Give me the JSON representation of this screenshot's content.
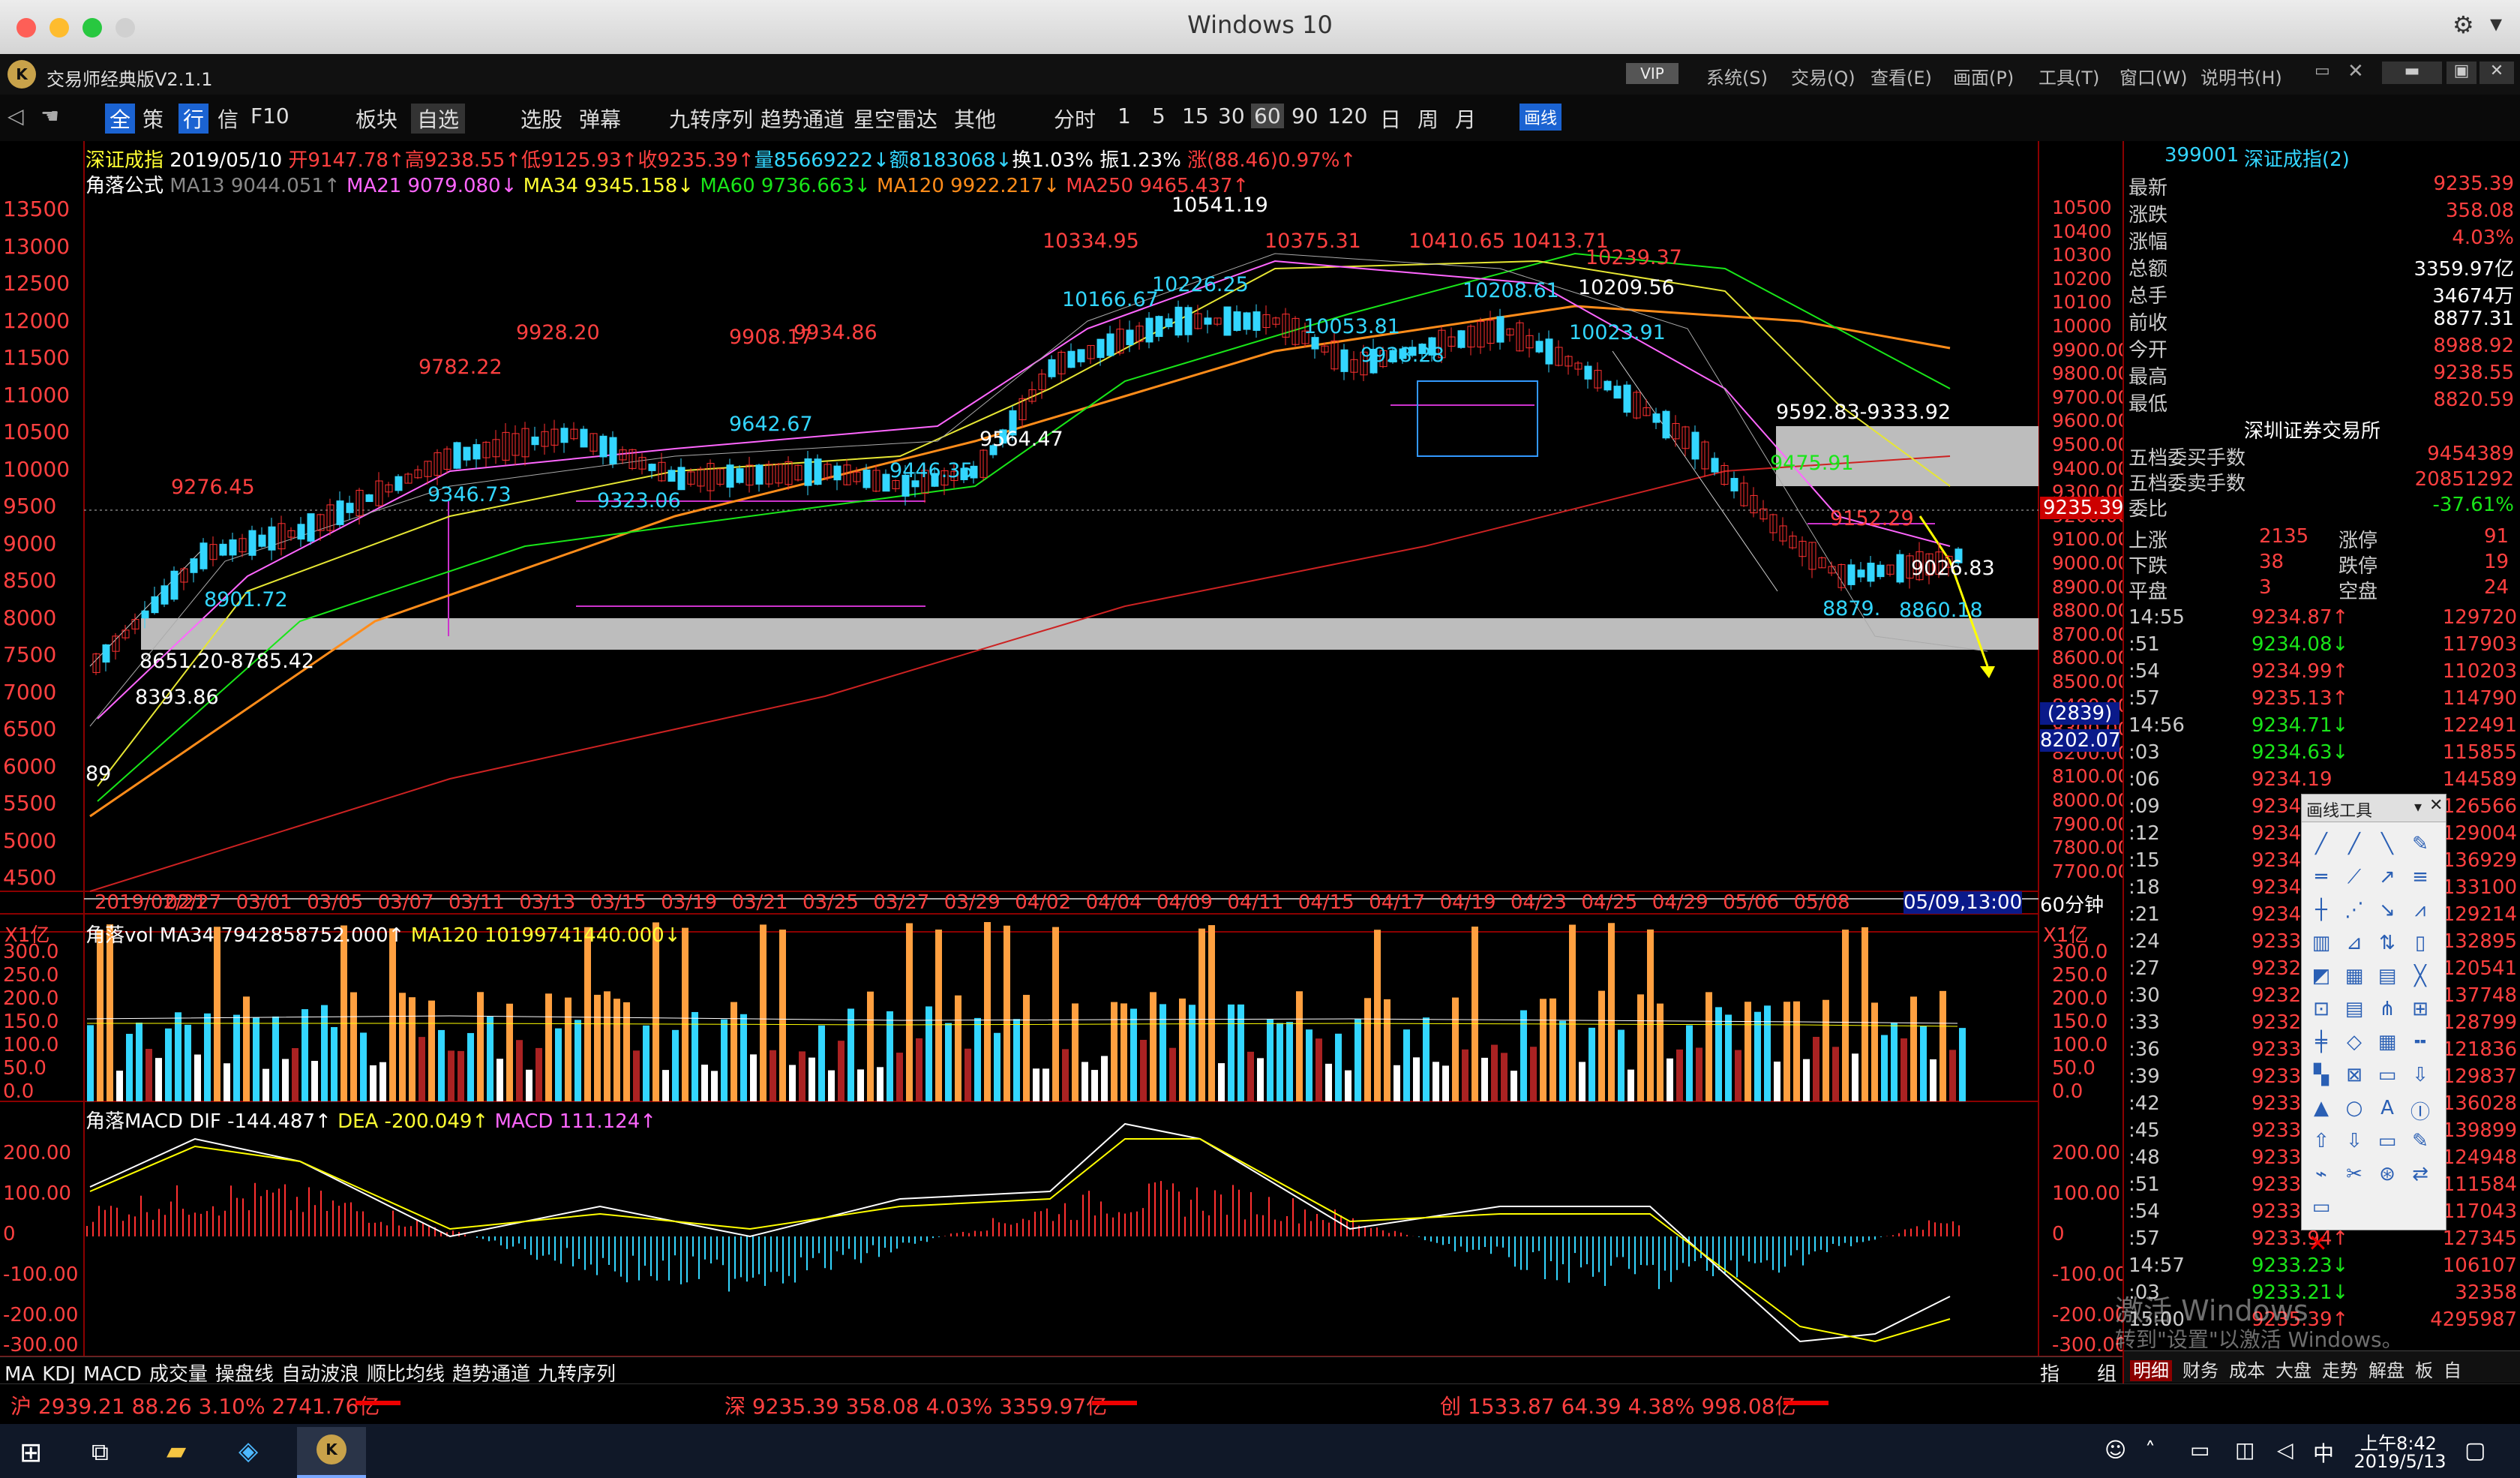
{
  "window": {
    "title": "Windows 10"
  },
  "app": {
    "title": "交易师经典版V2.1.1",
    "vip": "VIP",
    "menus": [
      "系统(S)",
      "交易(Q)",
      "查看(E)",
      "画面(P)",
      "工具(T)",
      "窗口(W)",
      "说明书(H)"
    ]
  },
  "toolbar": {
    "items": [
      "全",
      "策",
      "行",
      "信",
      "F10",
      "板块",
      "自选",
      "选股",
      "弹幕",
      "九转序列",
      "趋势通道",
      "星空雷达",
      "其他",
      "分时",
      "1",
      "5",
      "15",
      "30",
      "60",
      "90",
      "120",
      "日",
      "周",
      "月",
      "画线"
    ]
  },
  "header": {
    "symbol": "深证成指",
    "date": "2019/05/10",
    "open": "开9147.78↑",
    "high": "高9238.55↑",
    "low": "低9125.93↑",
    "close": "收9235.39↑",
    "volume": "量85669222↓",
    "amount": "额8183068↓",
    "turnover": "换1.03%",
    "amp": "振1.23%",
    "change": "涨(88.46)0.97%↑"
  },
  "ma_line": {
    "label": "角落公式",
    "ma13": "MA13 9044.051↑",
    "ma21": "MA21 9079.080↓",
    "ma34": "MA34 9345.158↓",
    "ma60": "MA60 9736.663↓",
    "ma120": "MA120 9922.217↓",
    "ma250": "MA250 9465.437↑"
  },
  "left_axis": [
    "13500",
    "13000",
    "12500",
    "12000",
    "11500",
    "11000",
    "10500",
    "10000",
    "9500",
    "9000",
    "8500",
    "8000",
    "7500",
    "7000",
    "6500",
    "6000",
    "5500",
    "5000",
    "4500"
  ],
  "right_axis": [
    "10500",
    "10400",
    "10300",
    "10200",
    "10100",
    "10000",
    "9900.00",
    "9800.00",
    "9700.00",
    "9600.00",
    "9500.00",
    "9400.00",
    "9300.00",
    "9200.00",
    "9100.00",
    "9000.00",
    "8900.00",
    "8800.00",
    "8700.00",
    "8600.00",
    "8500.00",
    "8400.00",
    "8300.00",
    "8200.00",
    "8100.00",
    "8000.00",
    "7900.00",
    "7800.00",
    "7700.00"
  ],
  "price_tag": "9235.39",
  "cursor_tag": {
    "count": "(2839)",
    "price": "8202.07"
  },
  "price_labels": [
    {
      "t": "10541.19",
      "c": "wht"
    },
    {
      "t": "10334.95",
      "c": "red"
    },
    {
      "t": "10166.67",
      "c": "cy"
    },
    {
      "t": "10226.25",
      "c": "cy"
    },
    {
      "t": "10375.31",
      "c": "red"
    },
    {
      "t": "10410.65",
      "c": "red"
    },
    {
      "t": "10413.71",
      "c": "red"
    },
    {
      "t": "10239.37",
      "c": "red"
    },
    {
      "t": "10209.56",
      "c": "wht"
    },
    {
      "t": "10208.61",
      "c": "cy"
    },
    {
      "t": "10053.81",
      "c": "cy"
    },
    {
      "t": "9928.28",
      "c": "cy"
    },
    {
      "t": "10023.91",
      "c": "cy"
    },
    {
      "t": "9928.20",
      "c": "red"
    },
    {
      "t": "9908.17",
      "c": "red"
    },
    {
      "t": "9934.86",
      "c": "red"
    },
    {
      "t": "9782.22",
      "c": "red"
    },
    {
      "t": "9642.67",
      "c": "cy"
    },
    {
      "t": "9564.47",
      "c": "wht"
    },
    {
      "t": "9446.35",
      "c": "cy"
    },
    {
      "t": "9346.73",
      "c": "cy"
    },
    {
      "t": "9323.06",
      "c": "cy"
    },
    {
      "t": "9276.45",
      "c": "red"
    },
    {
      "t": "8901.72",
      "c": "cy"
    },
    {
      "t": "8393.86",
      "c": "wht"
    },
    {
      "t": "8651.20-8785.42",
      "c": "wht"
    },
    {
      "t": "9592.83-9333.92",
      "c": "wht"
    },
    {
      "t": "9475.91",
      "c": "grn"
    },
    {
      "t": "9152.29",
      "c": "red"
    },
    {
      "t": "9026.83",
      "c": "wht"
    },
    {
      "t": "8879.",
      "c": "cy"
    },
    {
      "t": "8860.18",
      "c": "cy"
    },
    {
      "t": "89",
      "c": "wht"
    }
  ],
  "x_axis": [
    "2019/02/21",
    "02/27",
    "03/01",
    "03/05",
    "03/07",
    "03/11",
    "03/13",
    "03/15",
    "03/19",
    "03/21",
    "03/25",
    "03/27",
    "03/29",
    "04/02",
    "04/04",
    "04/09",
    "04/11",
    "04/15",
    "04/17",
    "04/19",
    "04/23",
    "04/25",
    "04/29",
    "05/06",
    "05/08",
    "05/09,13:00"
  ],
  "period": "60分钟",
  "vol": {
    "unit": "X1亿",
    "label": "角落vol",
    "ma34": "MA34 7942858752.000↑",
    "ma120": "MA120 10199741440.000↓",
    "axis": [
      "300.0",
      "250.0",
      "200.0",
      "150.0",
      "100.0",
      "50.0",
      "0.0"
    ]
  },
  "macd": {
    "label": "角落MACD",
    "dif": "DIF -144.487↑",
    "dea": "DEA -200.049↑",
    "macd": "MACD 111.124↑",
    "axis": [
      "200.00",
      "100.00",
      "0",
      "-100.00",
      "-200.00",
      "-300.00"
    ]
  },
  "ind_tabs": [
    "MA",
    "KDJ",
    "MACD",
    "成交量",
    "操盘线",
    "自动波浪",
    "顺比均线",
    "趋势通道",
    "九转序列"
  ],
  "side_tabs": [
    "指",
    "组"
  ],
  "status": {
    "sh": "沪 2939.21 88.26 3.10% 2741.76亿",
    "sz": "深 9235.39 358.08 4.03% 3359.97亿",
    "cy": "创 1533.87 64.39 4.38% 998.08亿"
  },
  "quote": {
    "code": "399001",
    "name": "深证成指(2)",
    "rows": [
      [
        "最新",
        "9235.39",
        "red"
      ],
      [
        "涨跌",
        "358.08",
        "red"
      ],
      [
        "涨幅",
        "4.03%",
        "red"
      ],
      [
        "总额",
        "3359.97亿",
        "wht"
      ],
      [
        "总手",
        "34674万",
        "wht"
      ],
      [
        "前收",
        "8877.31",
        "wht"
      ],
      [
        "今开",
        "8988.92",
        "red"
      ],
      [
        "最高",
        "9238.55",
        "red"
      ],
      [
        "最低",
        "8820.59",
        "red"
      ]
    ],
    "exchange": "深圳证券交易所",
    "rows2": [
      [
        "五档委买手数",
        "9454389",
        "red"
      ],
      [
        "五档委卖手数",
        "20851292",
        "red"
      ],
      [
        "委比",
        "-37.61%",
        "grn"
      ]
    ],
    "stats": [
      [
        "上涨",
        "2135",
        "涨停",
        "91"
      ],
      [
        "下跌",
        "38",
        "跌停",
        "19"
      ],
      [
        "平盘",
        "3",
        "空盘",
        "24"
      ]
    ],
    "ticks": [
      [
        "14:55",
        "9234.87↑",
        "129720"
      ],
      [
        ":51",
        "9234.08↓",
        "117903"
      ],
      [
        ":54",
        "9234.99↑",
        "110203"
      ],
      [
        ":57",
        "9235.13↑",
        "114790"
      ],
      [
        "14:56",
        "9234.71↓",
        "122491"
      ],
      [
        ":03",
        "9234.63↓",
        "115855"
      ],
      [
        ":06",
        "9234.19",
        "144589"
      ],
      [
        ":09",
        "9234",
        "126566"
      ],
      [
        ":12",
        "9234",
        "129004"
      ],
      [
        ":15",
        "9234",
        "136929"
      ],
      [
        ":18",
        "9234",
        "133100"
      ],
      [
        ":21",
        "9234",
        "129214"
      ],
      [
        ":24",
        "9233",
        "132895"
      ],
      [
        ":27",
        "9232",
        "120541"
      ],
      [
        ":30",
        "9232",
        "137748"
      ],
      [
        ":33",
        "9232",
        "128799"
      ],
      [
        ":36",
        "9233",
        "121836"
      ],
      [
        ":39",
        "9233",
        "129837"
      ],
      [
        ":42",
        "9233",
        "136028"
      ],
      [
        ":45",
        "9233",
        "139899"
      ],
      [
        ":48",
        "9233",
        "124948"
      ],
      [
        ":51",
        "9233",
        "111584"
      ],
      [
        ":54",
        "9233",
        "117043"
      ],
      [
        ":57",
        "9233.94↑",
        "127345"
      ],
      [
        "14:57",
        "9233.23↓",
        "106107"
      ],
      [
        ":03",
        "9233.21↓",
        "32358"
      ],
      [
        "15:00",
        "9235.39↑",
        "4295987"
      ]
    ]
  },
  "bottom_tabs": [
    "明细",
    "财务",
    "成本",
    "大盘",
    "走势",
    "解盘",
    "板",
    "自"
  ],
  "draw_tool": {
    "title": "画线工具"
  },
  "watermark": {
    "line1": "激活 Windows",
    "line2": "转到\"设置\"以激活 Windows。"
  },
  "taskbar": {
    "time": "上午8:42",
    "date": "2019/5/13",
    "ime": "中"
  }
}
